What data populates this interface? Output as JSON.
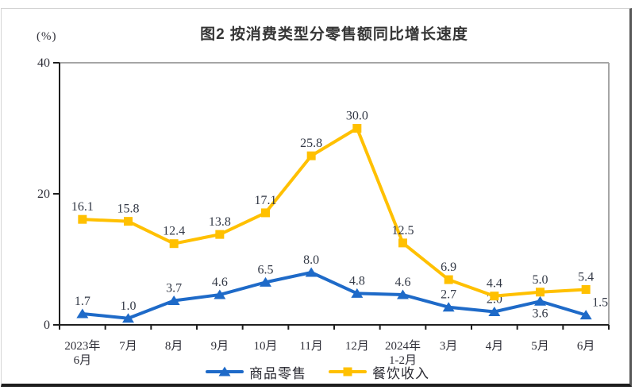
{
  "header": {
    "title": "图2 按消费类型分零售额同比增长速度",
    "unit_label": "(%)"
  },
  "chart_data": {
    "type": "line",
    "title": "图2 按消费类型分零售额同比增长速度",
    "xlabel": "",
    "ylabel": "(%)",
    "ylim": [
      0,
      40
    ],
    "yticks": [
      0,
      20,
      40
    ],
    "grid": false,
    "legend_position": "bottom",
    "categories": [
      "2023年\n6月",
      "7月",
      "8月",
      "9月",
      "10月",
      "11月",
      "12月",
      "2024年\n1-2月",
      "3月",
      "4月",
      "5月",
      "6月"
    ],
    "series": [
      {
        "name": "商品零售",
        "marker": "triangle",
        "color": "#1E6AC8",
        "values": [
          1.7,
          1.0,
          3.7,
          4.6,
          6.5,
          8.0,
          4.8,
          4.6,
          2.7,
          2.0,
          3.6,
          1.5
        ]
      },
      {
        "name": "餐饮收入",
        "marker": "square",
        "color": "#FFC000",
        "values": [
          16.1,
          15.8,
          12.4,
          13.8,
          17.1,
          25.8,
          30.0,
          12.5,
          6.9,
          4.4,
          5.0,
          5.4
        ]
      }
    ],
    "label_color": "#333946",
    "axis_color": "#1f1f1f",
    "plot_border_color": "#a6a6a6"
  }
}
